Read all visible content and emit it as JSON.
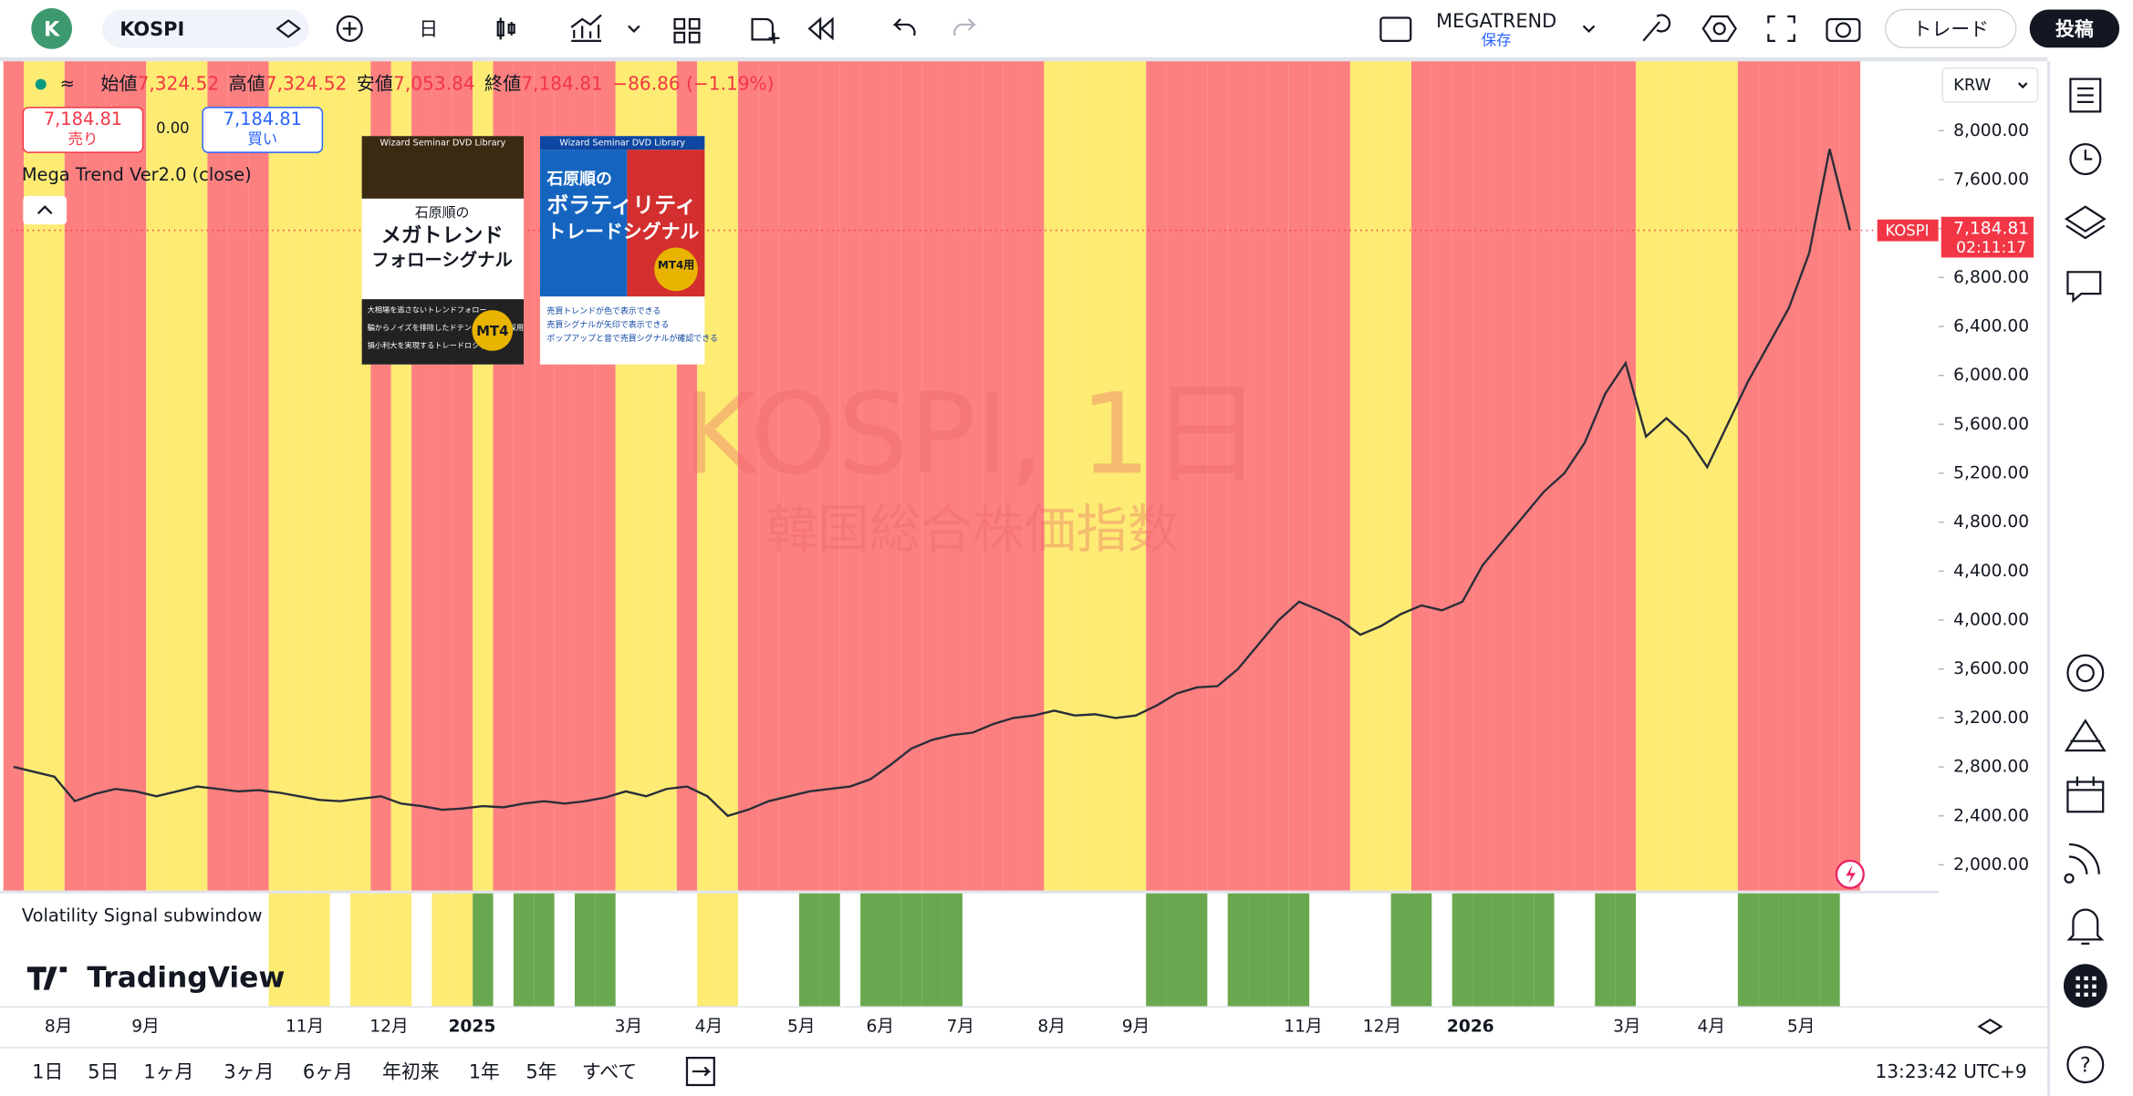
{
  "toolbar": {
    "avatar": "K",
    "symbol": "KOSPI",
    "interval": "日",
    "layout_name": "MEGATREND",
    "layout_status": "保存",
    "trade": "トレード",
    "publish": "投稿"
  },
  "legend": {
    "open_label": "始値",
    "open": "7,324.52",
    "high_label": "高値",
    "high": "7,324.52",
    "low_label": "安値",
    "low": "7,053.84",
    "close_label": "終値",
    "close": "7,184.81",
    "change": "−86.86 (−1.19%)"
  },
  "trade_panel": {
    "sell_price": "7,184.81",
    "sell": "売り",
    "spread": "0.00",
    "buy_price": "7,184.81",
    "buy": "買い"
  },
  "indicator": "Mega Trend Ver2.0 (close)",
  "watermark": {
    "title": "KOSPI, 1日",
    "subtitle": "韓国総合株価指数"
  },
  "covers": [
    {
      "series": "Wizard Seminar DVD Library",
      "author": "石原順の",
      "title1": "メガトレンド",
      "title2": "フォローシグナル",
      "points": [
        "大相場を逃さないトレンドフォロー",
        "騙からノイズを排除したドテンシステムを採用",
        "損小利大を実現するトレードロジック"
      ],
      "badge": "MT4"
    },
    {
      "series": "Wizard Seminar DVD Library",
      "author": "石原順の",
      "title1": "ボラティリティ",
      "title2": "トレードシグナル",
      "points": [
        "売買トレンドが色で表示できる",
        "売買シグナルが矢印で表示できる",
        "ポップアップと音で売買シグナルが確認できる"
      ],
      "badge": "MT4用"
    }
  ],
  "chart_data": {
    "type": "line",
    "currency": "KRW",
    "color": "#2a2e39",
    "values": [
      2800,
      2760,
      2720,
      2520,
      2580,
      2620,
      2600,
      2560,
      2600,
      2640,
      2620,
      2600,
      2610,
      2590,
      2560,
      2530,
      2520,
      2540,
      2560,
      2500,
      2480,
      2450,
      2460,
      2480,
      2470,
      2500,
      2520,
      2500,
      2520,
      2550,
      2600,
      2560,
      2620,
      2640,
      2560,
      2400,
      2450,
      2520,
      2560,
      2600,
      2620,
      2640,
      2700,
      2820,
      2950,
      3020,
      3060,
      3080,
      3150,
      3200,
      3220,
      3260,
      3220,
      3230,
      3200,
      3220,
      3300,
      3400,
      3450,
      3460,
      3600,
      3800,
      4000,
      4150,
      4080,
      4000,
      3880,
      3950,
      4050,
      4120,
      4080,
      4150,
      4450,
      4650,
      4850,
      5050,
      5200,
      5450,
      5850,
      6100,
      5500,
      5650,
      5500,
      5250,
      5600,
      5950,
      6250,
      6550,
      7000,
      7850,
      7185
    ],
    "trend": [
      "red",
      "yellow",
      "yellow",
      "red",
      "red",
      "red",
      "red",
      "yellow",
      "yellow",
      "yellow",
      "red",
      "red",
      "red",
      "yellow",
      "yellow",
      "yellow",
      "yellow",
      "yellow",
      "red",
      "yellow",
      "red",
      "red",
      "red",
      "yellow",
      "red",
      "red",
      "red",
      "red",
      "red",
      "red",
      "yellow",
      "yellow",
      "yellow",
      "red",
      "yellow",
      "yellow",
      "red",
      "red",
      "red",
      "red",
      "red",
      "red",
      "red",
      "red",
      "red",
      "red",
      "red",
      "red",
      "red",
      "red",
      "red",
      "yellow",
      "yellow",
      "yellow",
      "yellow",
      "yellow",
      "red",
      "red",
      "red",
      "red",
      "red",
      "red",
      "red",
      "red",
      "red",
      "red",
      "yellow",
      "yellow",
      "yellow",
      "red",
      "red",
      "red",
      "red",
      "red",
      "red",
      "red",
      "red",
      "red",
      "red",
      "red",
      "yellow",
      "yellow",
      "yellow",
      "yellow",
      "yellow",
      "red",
      "red",
      "red",
      "red",
      "red",
      "red"
    ],
    "trend_colors": {
      "red": "#fd8080",
      "yellow": "#fdeb73"
    },
    "ylim": [
      1789,
      8567
    ],
    "yticks": [
      {
        "value": 8000,
        "label": "8,000.00"
      },
      {
        "value": 7600,
        "label": "7,600.00"
      },
      {
        "value": 7200,
        "label": "7,200.00"
      },
      {
        "value": 6800,
        "label": "6,800.00"
      },
      {
        "value": 6400,
        "label": "6,400.00"
      },
      {
        "value": 6000,
        "label": "6,000.00"
      },
      {
        "value": 5600,
        "label": "5,600.00"
      },
      {
        "value": 5200,
        "label": "5,200.00"
      },
      {
        "value": 4800,
        "label": "4,800.00"
      },
      {
        "value": 4400,
        "label": "4,400.00"
      },
      {
        "value": 4000,
        "label": "4,000.00"
      },
      {
        "value": 3600,
        "label": "3,600.00"
      },
      {
        "value": 3200,
        "label": "3,200.00"
      },
      {
        "value": 2800,
        "label": "2,800.00"
      },
      {
        "value": 2400,
        "label": "2,400.00"
      },
      {
        "value": 2000,
        "label": "2,000.00"
      }
    ],
    "last_label": {
      "symbol": "KOSPI",
      "price": "7,184.81",
      "countdown": "02:11:17",
      "color": "#f23645"
    }
  },
  "subwindow": {
    "title": "Volatility Signal subwindow",
    "signal": [
      null,
      null,
      null,
      null,
      null,
      null,
      null,
      null,
      null,
      null,
      null,
      null,
      null,
      "yellow",
      "yellow",
      "yellow",
      null,
      "yellow",
      "yellow",
      "yellow",
      null,
      "yellow",
      "yellow",
      "green",
      null,
      "green",
      "green",
      null,
      "green",
      "green",
      null,
      null,
      null,
      null,
      "yellow",
      "yellow",
      null,
      null,
      null,
      "green",
      "green",
      null,
      "green",
      "green",
      "green",
      "green",
      "green",
      null,
      null,
      null,
      null,
      null,
      null,
      null,
      null,
      null,
      "green",
      "green",
      "green",
      null,
      "green",
      "green",
      "green",
      "green",
      null,
      null,
      null,
      null,
      "green",
      "green",
      null,
      "green",
      "green",
      "green",
      "green",
      "green",
      null,
      null,
      "green",
      "green",
      null,
      null,
      null,
      null,
      null,
      "green",
      "green",
      "green",
      "green",
      "green",
      null
    ],
    "signal_colors": {
      "green": "#6aa84f",
      "yellow": "#fdeb73"
    }
  },
  "time_axis": [
    "8月",
    "9月",
    "11月",
    "12月",
    "2025",
    "3月",
    "4月",
    "5月",
    "6月",
    "7月",
    "8月",
    "9月",
    "11月",
    "12月",
    "2026",
    "3月",
    "4月",
    "5月"
  ],
  "brand": "TradingView",
  "ranges": [
    "1日",
    "5日",
    "1ヶ月",
    "3ヶ月",
    "6ヶ月",
    "年初来",
    "1年",
    "5年",
    "すべて"
  ],
  "clock": "13:23:42 UTC+9"
}
